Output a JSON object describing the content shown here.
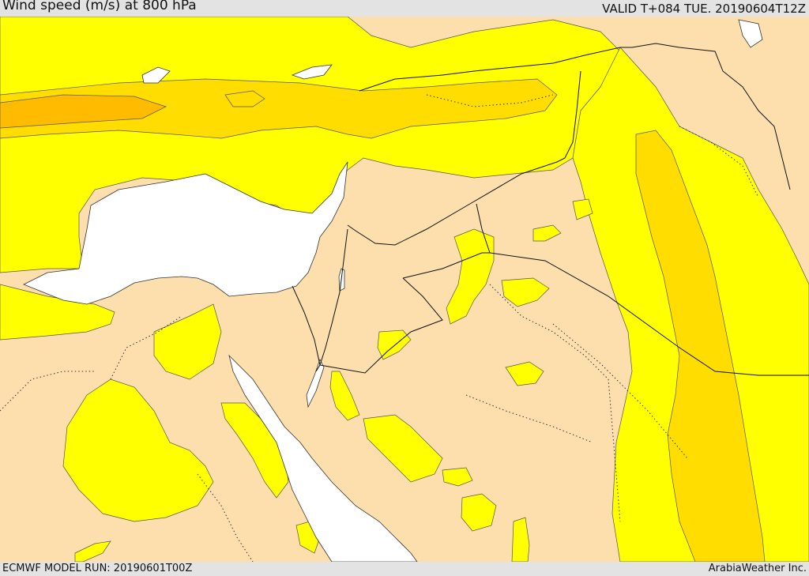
{
  "header": {
    "title": "Wind speed (m/s) at 800 hPa",
    "valid_time": "VALID T+084 TUE. 20190604T12Z"
  },
  "footer": {
    "model_run": "ECMWF MODEL RUN: 20190601T00Z",
    "credit": "ArabiaWeather Inc."
  },
  "colors": {
    "land_background": "#fddfae",
    "sea": "#ffffff",
    "wind_band_1": "#ffff00",
    "wind_band_2": "#ffdd00",
    "wind_band_3": "#ffbb00",
    "contour_line": "#444444",
    "border_line": "#111111"
  }
}
